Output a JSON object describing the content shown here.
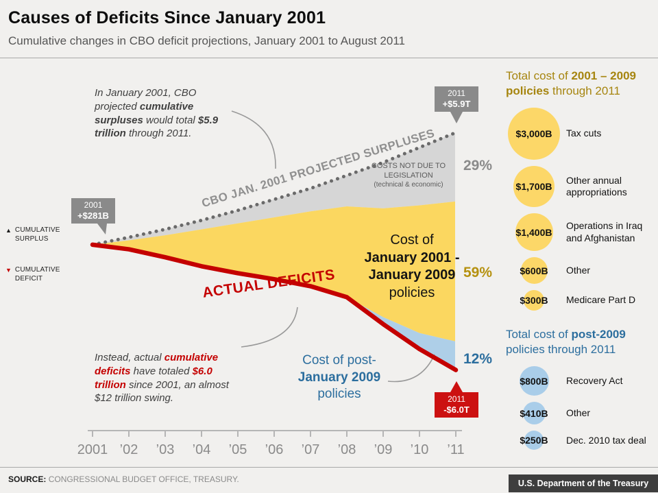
{
  "page": {
    "title": "Causes of Deficits Since January 2001",
    "subtitle": "Cumulative changes in CBO deficit projections, January 2001 to August 2011"
  },
  "chart_data": {
    "type": "area",
    "title": "Causes of Deficits Since January 2001",
    "unit": "cumulative surplus (+) / deficit (-), trillions of dollars",
    "x": [
      2001,
      2002,
      2003,
      2004,
      2005,
      2006,
      2007,
      2008,
      2009,
      2010,
      2011
    ],
    "x_tick_labels": [
      "2001",
      "’02",
      "’03",
      "’04",
      "’05",
      "’06",
      "’07",
      "’08",
      "’09",
      "’10",
      "’11"
    ],
    "ylim_trillions": [
      -6.0,
      5.9
    ],
    "projected": [
      0.28,
      0.65,
      1.05,
      1.5,
      2.0,
      2.55,
      3.1,
      3.75,
      4.4,
      5.15,
      5.9
    ],
    "policies_0109_top": [
      0.28,
      0.5,
      0.75,
      1.05,
      1.35,
      1.65,
      1.95,
      2.2,
      2.1,
      2.25,
      2.45
    ],
    "post2009_top": [
      0.28,
      0.05,
      -0.35,
      -0.8,
      -1.15,
      -1.45,
      -1.8,
      -2.35,
      -3.35,
      -4.15,
      -4.57
    ],
    "actual": [
      0.28,
      0.05,
      -0.35,
      -0.8,
      -1.15,
      -1.45,
      -1.8,
      -2.35,
      -3.7,
      -4.95,
      -6.0
    ],
    "projected_line": {
      "label": "CBO JAN. 2001 PROJECTED SURPLUSES",
      "color": "#6a6a6a",
      "style": "dotted"
    },
    "actual_line": {
      "label": "ACTUAL DEFICITS",
      "color": "#c40000",
      "style": "solid-thick"
    },
    "areas": [
      {
        "name": "Costs not due to legislation (technical & economic)",
        "color": "#d6d6d6",
        "top_key": "projected",
        "bottom_key": "policies_0109_top",
        "share": "29%",
        "share_color": "#8a8a8a",
        "data_name": "area-costs-not-legislation"
      },
      {
        "name": "Cost of January 2001 - January 2009 policies",
        "color": "#fbd760",
        "top_key": "policies_0109_top",
        "bottom_key": "post2009_top",
        "share": "59%",
        "share_color": "#b5910f",
        "data_name": "area-2001-2009-policies"
      },
      {
        "name": "Cost of post-January 2009 policies",
        "color": "#aecfe8",
        "top_key": "post2009_top",
        "bottom_key": "actual",
        "share": "12%",
        "share_color": "#2c6e9e",
        "data_name": "area-post-2009-policies"
      }
    ]
  },
  "markers": {
    "start": {
      "line1": "2001",
      "line2": "+$281B",
      "color": "#8a8a8a"
    },
    "projected_end": {
      "line1": "2011",
      "line2": "+$5.9T",
      "color": "#8a8a8a"
    },
    "actual_end": {
      "line1": "2011",
      "line2": "-$6.0T",
      "color": "#cc1111"
    }
  },
  "legend": {
    "surplus": {
      "icon": "▲",
      "label": "CUMULATIVE SURPLUS",
      "color": "#1a1a1a"
    },
    "deficit": {
      "icon": "▼",
      "label": "CUMULATIVE DEFICIT",
      "color": "#c40000"
    }
  },
  "annotations": {
    "projected": [
      {
        "t": "In January 2001, CBO projected "
      },
      {
        "t": "cumulative surpluses",
        "b": 1
      },
      {
        "t": " would total "
      },
      {
        "t": "$5.9 trillion",
        "b": 1
      },
      {
        "t": " through 2011."
      }
    ],
    "actual": [
      {
        "t": "Instead, actual "
      },
      {
        "t": "cumulative deficits",
        "b": 1,
        "c": "#c40000"
      },
      {
        "t": " have totaled "
      },
      {
        "t": "$6.0 trillion",
        "b": 1,
        "c": "#c40000"
      },
      {
        "t": " since 2001, an almost $12 trillion swing."
      }
    ]
  },
  "area_labels": {
    "gray_note_line1": "COSTS NOT DUE TO LEGISLATION",
    "gray_note_line2": "(technical & economic)",
    "yellow": {
      "line1": "Cost of",
      "line2": "January 2001 -",
      "line3": "January 2009",
      "line4": "policies"
    },
    "blue": {
      "line1": "Cost of post-",
      "line2": "January 2009",
      "line3": "policies"
    }
  },
  "sidebar": {
    "policies_2001_2009": {
      "header_line1": [
        {
          "t": "Total cost of "
        },
        {
          "t": "2001 – 2009",
          "b": 1
        }
      ],
      "header_line2": [
        {
          "t": "policies",
          "b": 1
        },
        {
          "t": " through 2011"
        }
      ],
      "color": "#a6850f",
      "bubble_color": "#fcd768",
      "items": [
        {
          "value": "$3,000B",
          "value_b": 3000,
          "label": "Tax cuts"
        },
        {
          "value": "$1,700B",
          "value_b": 1700,
          "label": "Other annual appropriations"
        },
        {
          "value": "$1,400B",
          "value_b": 1400,
          "label": "Operations in Iraq and Afghanistan"
        },
        {
          "value": "$600B",
          "value_b": 600,
          "label": "Other"
        },
        {
          "value": "$300B",
          "value_b": 300,
          "label": "Medicare Part D"
        }
      ]
    },
    "post_2009": {
      "header_line1": [
        {
          "t": "Total cost of "
        },
        {
          "t": "post-2009",
          "b": 1
        }
      ],
      "header_line2": [
        {
          "t": "policies through 2011"
        }
      ],
      "color": "#2c6e9e",
      "bubble_color": "#a9cde9",
      "items": [
        {
          "value": "$800B",
          "value_b": 800,
          "label": "Recovery Act"
        },
        {
          "value": "$410B",
          "value_b": 410,
          "label": "Other"
        },
        {
          "value": "$250B",
          "value_b": 250,
          "label": "Dec. 2010 tax deal"
        }
      ]
    }
  },
  "footer": {
    "source_label": "SOURCE:",
    "source_text": "CONGRESSIONAL BUDGET OFFICE, TREASURY.",
    "treasury": "U.S. Department of the Treasury"
  }
}
